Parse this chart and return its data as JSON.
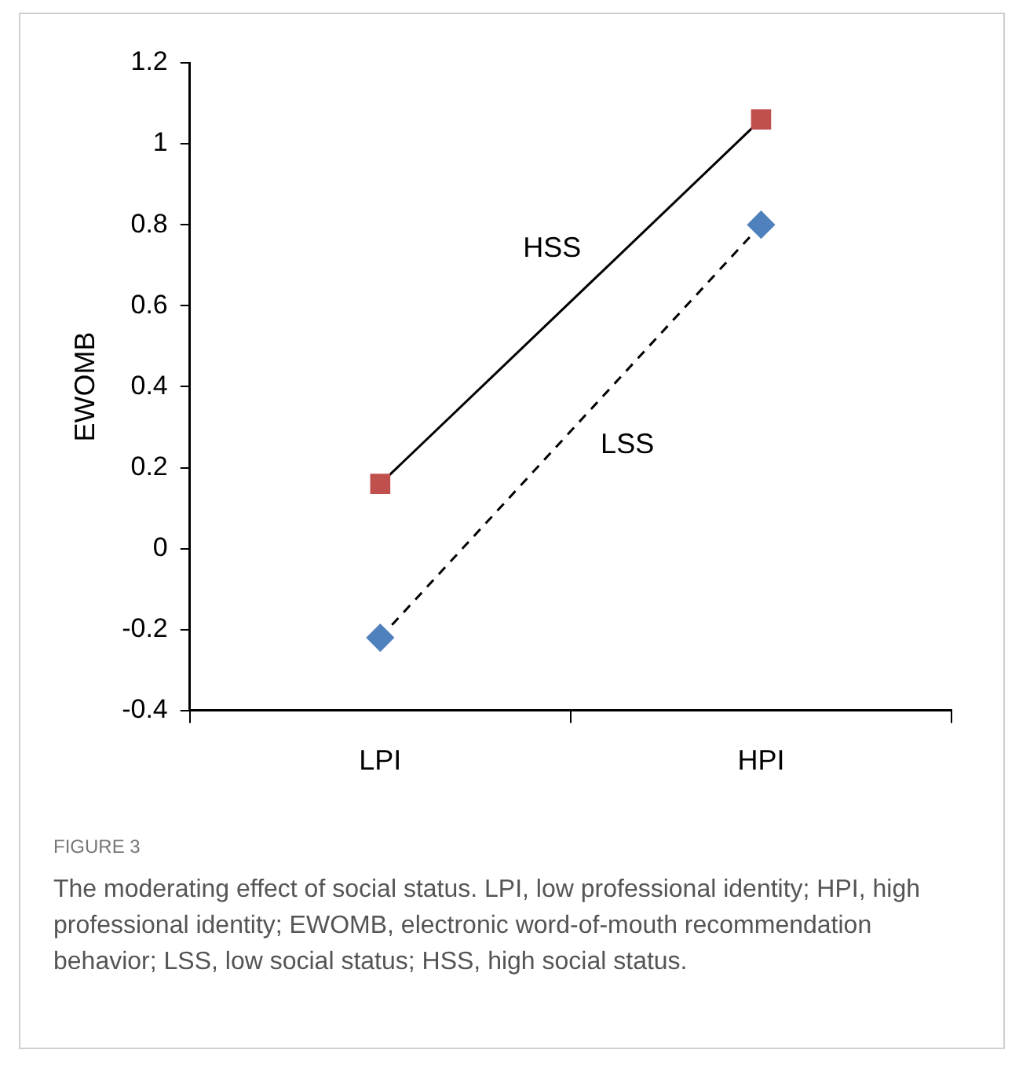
{
  "chart_data": {
    "type": "line",
    "ylabel": "EWOMB",
    "categories": [
      "LPI",
      "HPI"
    ],
    "series": [
      {
        "name": "HSS",
        "color": "#c0504d",
        "values": [
          0.16,
          1.06
        ],
        "marker": "square",
        "line_style": "solid"
      },
      {
        "name": "LSS",
        "color": "#4f81bd",
        "values": [
          -0.22,
          0.8
        ],
        "marker": "diamond",
        "line_style": "dashed"
      }
    ],
    "ylim": [
      -0.4,
      1.2
    ],
    "yticks": [
      -0.4,
      -0.2,
      0,
      0.2,
      0.4,
      0.6,
      0.8,
      1,
      1.2
    ],
    "legend": false,
    "annotations": [
      "FIGURE 3",
      "The moderating effect of social status. LPI, low professional identity; HPI, high professional identity; EWOMB, electronic word-of-mouth recommendation behavior; LSS, low social status; HSS, high social status."
    ]
  }
}
